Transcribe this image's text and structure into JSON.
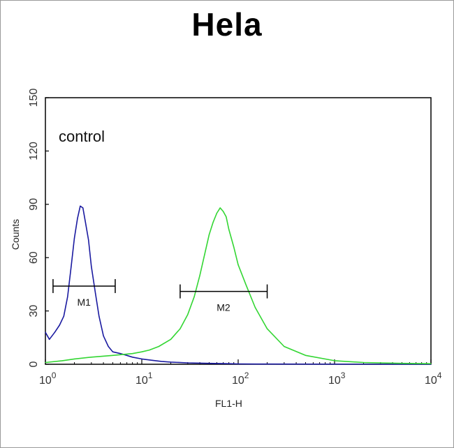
{
  "chart_data": {
    "type": "line",
    "title": "Hela",
    "xlabel": "FL1-H",
    "ylabel": "Counts",
    "x_scale": "log",
    "xlim": [
      1,
      10000
    ],
    "ylim": [
      0,
      150
    ],
    "x_ticks": [
      {
        "value": 1,
        "base": "10",
        "exp": "0"
      },
      {
        "value": 10,
        "base": "10",
        "exp": "1"
      },
      {
        "value": 100,
        "base": "10",
        "exp": "2"
      },
      {
        "value": 1000,
        "base": "10",
        "exp": "3"
      },
      {
        "value": 10000,
        "base": "10",
        "exp": "4"
      }
    ],
    "y_ticks": [
      "0",
      "30",
      "60",
      "90",
      "120",
      "150"
    ],
    "annotation": "control",
    "legend": "none",
    "grid": false,
    "series": [
      {
        "color": "#1a1aa0",
        "x": [
          1.0,
          1.1,
          1.25,
          1.4,
          1.55,
          1.7,
          1.85,
          2.0,
          2.15,
          2.3,
          2.45,
          2.6,
          2.8,
          3.0,
          3.3,
          3.6,
          4.0,
          4.5,
          5.0,
          6.0,
          7.0,
          8.0,
          10,
          13,
          16,
          20,
          30,
          50,
          80,
          100,
          150,
          10000
        ],
        "y": [
          18,
          14,
          18,
          22,
          27,
          38,
          55,
          71,
          82,
          89,
          88,
          80,
          70,
          55,
          40,
          27,
          16,
          10,
          7,
          6,
          5,
          4,
          3,
          2.2,
          1.6,
          1.2,
          0.8,
          0.5,
          0.3,
          0.2,
          0.1,
          0
        ]
      },
      {
        "color": "#33d633",
        "x": [
          1.0,
          1.5,
          2.0,
          3.0,
          5.0,
          8.0,
          10,
          12,
          15,
          20,
          25,
          30,
          35,
          40,
          45,
          50,
          55,
          60,
          65,
          70,
          75,
          80,
          90,
          100,
          120,
          150,
          200,
          300,
          500,
          1000,
          2000,
          5000,
          10000
        ],
        "y": [
          1,
          2,
          3,
          4,
          5,
          6,
          7,
          8,
          10,
          14,
          20,
          28,
          38,
          50,
          62,
          73,
          80,
          85,
          88,
          86,
          83,
          76,
          66,
          56,
          45,
          32,
          20,
          10,
          5,
          2,
          1,
          0.5,
          0.3
        ]
      }
    ],
    "markers": [
      {
        "label": "M1",
        "x_start": 1.2,
        "x_end": 5.3,
        "y": 44
      },
      {
        "label": "M2",
        "x_start": 25,
        "x_end": 200,
        "y": 41
      }
    ]
  }
}
